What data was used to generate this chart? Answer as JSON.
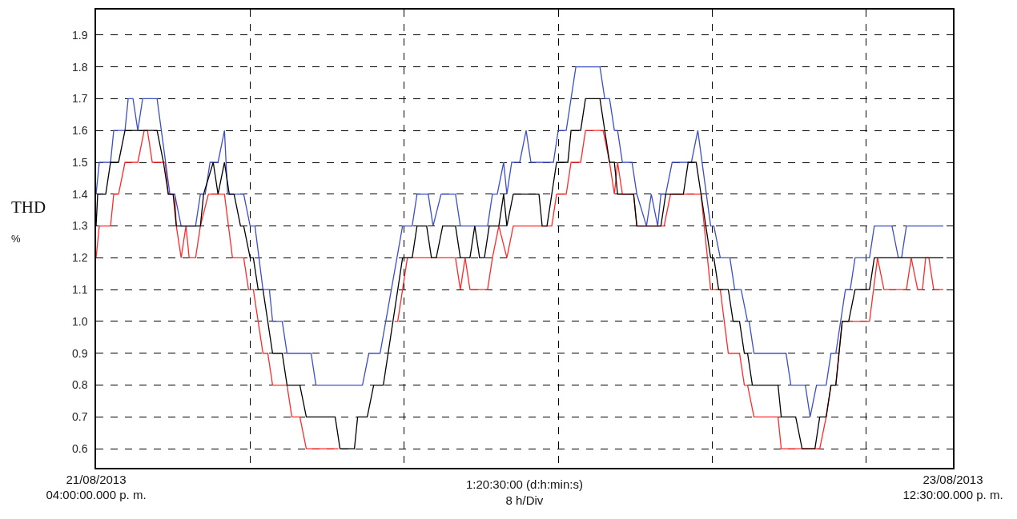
{
  "chart_data": {
    "type": "line",
    "ylabel": "THD\n%",
    "xlabel": "1:20:30:00 (d:h:min:s)\n8 h/Div",
    "xlim": [
      "2013-08-21T16:00",
      "2013-08-23T12:30"
    ],
    "xticks": [
      {
        "value": "2013-08-21T16:00",
        "label": "21/08/2013\n04:00:00.000 p. m."
      },
      {
        "value": "2013-08-22T00:00",
        "label": null
      },
      {
        "value": "2013-08-22T08:00",
        "label": null
      },
      {
        "value": "2013-08-22T16:00",
        "label": null
      },
      {
        "value": "2013-08-23T00:00",
        "label": null
      },
      {
        "value": "2013-08-23T08:00",
        "label": null
      },
      {
        "value": "2013-08-23T12:30",
        "label": "23/08/2013\n12:30:00.000 p. m."
      }
    ],
    "ylim": [
      0.54,
      1.98
    ],
    "yticks": [
      0.6,
      0.7,
      0.8,
      0.9,
      {
        "value": 1.0,
        "label": "1.0"
      },
      1.1,
      1.2,
      1.3,
      1.4,
      1.5,
      1.6,
      1.7,
      1.8,
      1.9
    ],
    "grid": true,
    "line_style": "solid",
    "series": [
      {
        "color": "#ff2a2a",
        "x": [
          "2013-08-21T16:00",
          "2013-08-21T16:10",
          "2013-08-21T16:45",
          "2013-08-21T16:55",
          "2013-08-21T17:10",
          "2013-08-21T17:30",
          "2013-08-21T18:10",
          "2013-08-21T18:30",
          "2013-08-21T18:40",
          "2013-08-21T18:55",
          "2013-08-21T19:35",
          "2013-08-21T19:45",
          "2013-08-21T20:05",
          "2013-08-21T20:10",
          "2013-08-21T20:25",
          "2013-08-21T20:40",
          "2013-08-21T20:50",
          "2013-08-21T21:10",
          "2013-08-21T21:25",
          "2013-08-21T21:50",
          "2013-08-21T22:40",
          "2013-08-21T23:05",
          "2013-08-21T23:40",
          "2013-08-21T23:55",
          "2013-08-22T00:10",
          "2013-08-22T00:40",
          "2013-08-22T00:55",
          "2013-08-22T01:10",
          "2013-08-22T01:55",
          "2013-08-22T02:10",
          "2013-08-22T02:35",
          "2013-08-22T02:55",
          "2013-08-22T04:35",
          "2013-08-22T05:20",
          "2013-08-22T07:30",
          "2013-08-22T07:40",
          "2013-08-22T08:10",
          "2013-08-22T10:40",
          "2013-08-22T10:55",
          "2013-08-22T11:10",
          "2013-08-22T11:25",
          "2013-08-22T12:20",
          "2013-08-22T12:35",
          "2013-08-22T12:55",
          "2013-08-22T13:20",
          "2013-08-22T13:40",
          "2013-08-22T15:40",
          "2013-08-22T15:55",
          "2013-08-22T16:25",
          "2013-08-22T16:40",
          "2013-08-22T17:10",
          "2013-08-22T17:25",
          "2013-08-22T18:20",
          "2013-08-22T18:40",
          "2013-08-22T18:55",
          "2013-08-22T19:05",
          "2013-08-22T19:20",
          "2013-08-22T19:55",
          "2013-08-22T20:05",
          "2013-08-22T21:30",
          "2013-08-22T21:50",
          "2013-08-22T23:25",
          "2013-08-22T23:55",
          "2013-08-23T00:25",
          "2013-08-23T00:50",
          "2013-08-23T01:25",
          "2013-08-23T01:40",
          "2013-08-23T01:50",
          "2013-08-23T02:10",
          "2013-08-23T03:25",
          "2013-08-23T03:35",
          "2013-08-23T05:35",
          "2013-08-23T05:55",
          "2013-08-23T06:10",
          "2013-08-23T06:25",
          "2013-08-23T06:45",
          "2013-08-23T08:10",
          "2013-08-23T08:35",
          "2013-08-23T08:55",
          "2013-08-23T10:05",
          "2013-08-23T10:20",
          "2013-08-23T10:40",
          "2013-08-23T10:55",
          "2013-08-23T11:05",
          "2013-08-23T11:15",
          "2013-08-23T11:30",
          "2013-08-23T12:00"
        ],
        "values": [
          1.2,
          1.3,
          1.3,
          1.4,
          1.4,
          1.5,
          1.5,
          1.6,
          1.6,
          1.5,
          1.5,
          1.4,
          1.4,
          1.3,
          1.2,
          1.3,
          1.2,
          1.2,
          1.3,
          1.4,
          1.4,
          1.2,
          1.2,
          1.1,
          1.1,
          0.9,
          0.9,
          0.8,
          0.8,
          0.7,
          0.7,
          0.6,
          0.6,
          null,
          1.0,
          1.0,
          1.2,
          1.2,
          1.1,
          1.2,
          1.1,
          1.1,
          1.2,
          1.3,
          1.2,
          1.3,
          1.3,
          1.4,
          1.4,
          1.5,
          1.5,
          1.6,
          1.6,
          1.5,
          1.4,
          1.5,
          1.4,
          1.4,
          1.3,
          1.3,
          1.4,
          1.4,
          1.1,
          1.1,
          0.9,
          0.9,
          0.8,
          0.8,
          0.7,
          0.7,
          0.6,
          0.6,
          0.7,
          0.8,
          0.8,
          1.0,
          1.0,
          1.2,
          1.1,
          1.1,
          1.2,
          1.1,
          1.1,
          1.2,
          1.2,
          1.1,
          1.1
        ]
      },
      {
        "color": "#3c4fc4",
        "x": [
          "2013-08-21T16:00",
          "2013-08-21T16:10",
          "2013-08-21T16:45",
          "2013-08-21T16:55",
          "2013-08-21T17:30",
          "2013-08-21T17:40",
          "2013-08-21T17:55",
          "2013-08-21T18:10",
          "2013-08-21T18:25",
          "2013-08-21T19:10",
          "2013-08-21T19:50",
          "2013-08-21T20:05",
          "2013-08-21T20:25",
          "2013-08-21T21:10",
          "2013-08-21T21:25",
          "2013-08-21T21:40",
          "2013-08-21T21:55",
          "2013-08-21T22:20",
          "2013-08-21T22:40",
          "2013-08-21T22:50",
          "2013-08-21T23:40",
          "2013-08-22T00:00",
          "2013-08-22T00:15",
          "2013-08-22T00:40",
          "2013-08-22T01:00",
          "2013-08-22T01:10",
          "2013-08-22T01:40",
          "2013-08-22T01:55",
          "2013-08-22T03:10",
          "2013-08-22T03:25",
          "2013-08-22T05:50",
          "2013-08-22T06:10",
          "2013-08-22T06:45",
          "2013-08-22T07:55",
          "2013-08-22T08:25",
          "2013-08-22T08:40",
          "2013-08-22T09:15",
          "2013-08-22T09:30",
          "2013-08-22T09:55",
          "2013-08-22T10:40",
          "2013-08-22T10:55",
          "2013-08-22T12:20",
          "2013-08-22T12:35",
          "2013-08-22T12:50",
          "2013-08-22T13:10",
          "2013-08-22T13:20",
          "2013-08-22T13:35",
          "2013-08-22T14:00",
          "2013-08-22T14:20",
          "2013-08-22T14:35",
          "2013-08-22T15:45",
          "2013-08-22T16:00",
          "2013-08-22T16:25",
          "2013-08-22T16:55",
          "2013-08-22T18:10",
          "2013-08-22T18:25",
          "2013-08-22T18:40",
          "2013-08-22T18:55",
          "2013-08-22T19:05",
          "2013-08-22T19:20",
          "2013-08-22T19:50",
          "2013-08-22T20:05",
          "2013-08-22T20:35",
          "2013-08-22T20:50",
          "2013-08-22T21:10",
          "2013-08-22T21:20",
          "2013-08-22T21:35",
          "2013-08-22T21:55",
          "2013-08-22T22:55",
          "2013-08-22T23:15",
          "2013-08-22T23:55",
          "2013-08-23T00:05",
          "2013-08-23T00:25",
          "2013-08-23T00:55",
          "2013-08-23T01:10",
          "2013-08-23T01:30",
          "2013-08-23T01:50",
          "2013-08-23T01:55",
          "2013-08-23T02:10",
          "2013-08-23T03:50",
          "2013-08-23T04:05",
          "2013-08-23T04:50",
          "2013-08-23T05:05",
          "2013-08-23T05:25",
          "2013-08-23T05:55",
          "2013-08-23T06:10",
          "2013-08-23T06:25",
          "2013-08-23T06:55",
          "2013-08-23T07:10",
          "2013-08-23T07:25",
          "2013-08-23T08:10",
          "2013-08-23T08:25",
          "2013-08-23T09:20",
          "2013-08-23T09:40",
          "2013-08-23T09:50",
          "2013-08-23T10:05",
          "2013-08-23T12:00"
        ],
        "values": [
          1.4,
          1.5,
          1.5,
          1.6,
          1.6,
          1.7,
          1.7,
          1.6,
          1.7,
          1.7,
          1.4,
          1.4,
          1.3,
          1.3,
          1.4,
          1.4,
          1.5,
          1.5,
          1.6,
          1.4,
          1.4,
          1.3,
          1.3,
          1.1,
          1.1,
          1.0,
          1.0,
          0.9,
          0.9,
          0.8,
          0.8,
          0.9,
          0.9,
          1.3,
          1.3,
          1.4,
          1.4,
          1.3,
          1.4,
          1.4,
          1.3,
          1.3,
          1.4,
          1.4,
          1.5,
          1.4,
          1.5,
          1.5,
          1.6,
          1.5,
          1.5,
          1.6,
          1.6,
          1.8,
          1.8,
          1.7,
          1.7,
          1.6,
          1.6,
          1.5,
          1.5,
          1.4,
          1.3,
          1.4,
          1.3,
          1.4,
          1.4,
          1.5,
          1.5,
          1.6,
          1.3,
          1.3,
          1.2,
          1.2,
          1.1,
          1.1,
          1.0,
          1.0,
          0.9,
          0.9,
          0.8,
          0.8,
          0.7,
          0.8,
          0.8,
          0.9,
          0.9,
          1.1,
          1.1,
          1.2,
          1.2,
          1.3,
          1.3,
          1.2,
          1.2,
          1.3,
          1.3
        ]
      },
      {
        "color": "#000000",
        "x": [
          "2013-08-21T16:00",
          "2013-08-21T16:05",
          "2013-08-21T16:30",
          "2013-08-21T16:45",
          "2013-08-21T17:10",
          "2013-08-21T17:30",
          "2013-08-21T19:10",
          "2013-08-21T19:30",
          "2013-08-21T19:45",
          "2013-08-21T20:00",
          "2013-08-21T20:10",
          "2013-08-21T21:25",
          "2013-08-21T21:35",
          "2013-08-21T22:05",
          "2013-08-21T22:20",
          "2013-08-21T22:40",
          "2013-08-21T22:55",
          "2013-08-21T23:10",
          "2013-08-21T23:30",
          "2013-08-21T23:40",
          "2013-08-22T00:00",
          "2013-08-22T00:10",
          "2013-08-22T00:25",
          "2013-08-22T00:40",
          "2013-08-22T01:10",
          "2013-08-22T01:40",
          "2013-08-22T01:55",
          "2013-08-22T02:35",
          "2013-08-22T02:55",
          "2013-08-22T04:25",
          "2013-08-22T04:40",
          "2013-08-22T05:25",
          "2013-08-22T05:35",
          "2013-08-22T06:05",
          "2013-08-22T06:25",
          "2013-08-22T06:55",
          "2013-08-22T07:55",
          "2013-08-22T08:25",
          "2013-08-22T08:40",
          "2013-08-22T09:10",
          "2013-08-22T09:25",
          "2013-08-22T09:40",
          "2013-08-22T10:00",
          "2013-08-22T10:40",
          "2013-08-22T10:55",
          "2013-08-22T11:25",
          "2013-08-22T11:40",
          "2013-08-22T11:55",
          "2013-08-22T12:10",
          "2013-08-22T12:25",
          "2013-08-22T12:55",
          "2013-08-22T13:10",
          "2013-08-22T13:20",
          "2013-08-22T13:40",
          "2013-08-22T15:00",
          "2013-08-22T15:10",
          "2013-08-22T15:25",
          "2013-08-22T15:55",
          "2013-08-22T16:30",
          "2013-08-22T16:40",
          "2013-08-22T17:10",
          "2013-08-22T17:25",
          "2013-08-22T18:10",
          "2013-08-22T18:40",
          "2013-08-22T18:55",
          "2013-08-22T19:05",
          "2013-08-22T19:55",
          "2013-08-22T20:05",
          "2013-08-22T21:20",
          "2013-08-22T21:35",
          "2013-08-22T22:30",
          "2013-08-22T22:45",
          "2013-08-22T23:10",
          "2013-08-22T23:55",
          "2013-08-23T00:05",
          "2013-08-23T00:20",
          "2013-08-23T00:50",
          "2013-08-23T01:05",
          "2013-08-23T01:25",
          "2013-08-23T01:40",
          "2013-08-23T01:50",
          "2013-08-23T02:05",
          "2013-08-23T03:25",
          "2013-08-23T03:35",
          "2013-08-23T04:20",
          "2013-08-23T04:40",
          "2013-08-23T05:20",
          "2013-08-23T05:35",
          "2013-08-23T05:55",
          "2013-08-23T06:10",
          "2013-08-23T06:25",
          "2013-08-23T06:45",
          "2013-08-23T07:05",
          "2013-08-23T07:25",
          "2013-08-23T08:10",
          "2013-08-23T08:25",
          "2013-08-23T12:00"
        ],
        "values": [
          1.3,
          1.4,
          1.4,
          1.5,
          1.5,
          1.6,
          1.6,
          1.5,
          1.4,
          1.4,
          1.3,
          1.3,
          1.4,
          1.5,
          1.4,
          1.5,
          1.4,
          1.4,
          1.3,
          1.3,
          1.2,
          1.2,
          1.1,
          1.1,
          0.9,
          0.9,
          0.8,
          0.8,
          0.7,
          0.7,
          0.6,
          0.6,
          0.7,
          0.7,
          0.8,
          0.8,
          1.2,
          1.2,
          1.3,
          1.3,
          1.2,
          1.2,
          1.3,
          1.3,
          1.2,
          1.2,
          1.3,
          1.2,
          1.2,
          1.3,
          1.3,
          1.4,
          1.3,
          1.4,
          1.4,
          1.3,
          1.3,
          1.5,
          1.5,
          1.6,
          1.6,
          1.7,
          1.7,
          1.5,
          1.5,
          1.4,
          1.4,
          1.3,
          1.3,
          1.4,
          1.4,
          1.5,
          1.5,
          1.2,
          1.2,
          1.1,
          1.1,
          1.0,
          1.0,
          0.9,
          0.9,
          0.8,
          0.8,
          0.7,
          0.7,
          0.6,
          0.6,
          0.7,
          0.7,
          0.8,
          0.8,
          1.0,
          1.0,
          1.1,
          1.1,
          1.2,
          1.2
        ]
      }
    ]
  }
}
